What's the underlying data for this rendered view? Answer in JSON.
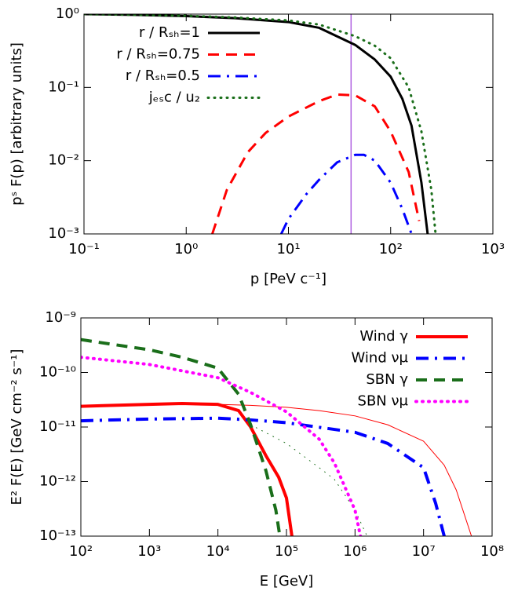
{
  "chart_data": [
    {
      "type": "line",
      "xlabel": "p [PeV c⁻¹]",
      "ylabel": "pˢ F(p) [arbitrary units]",
      "log_x": true,
      "log_y": true,
      "xlim": [
        0.1,
        1000
      ],
      "ylim": [
        0.001,
        1
      ],
      "legend": "upper left",
      "xticks": [
        {
          "value": 0.1,
          "label": "10⁻¹"
        },
        {
          "value": 1,
          "label": "10⁰"
        },
        {
          "value": 10,
          "label": "10¹"
        },
        {
          "value": 100,
          "label": "10²"
        },
        {
          "value": 1000,
          "label": "10³"
        }
      ],
      "yticks": [
        {
          "value": 0.001,
          "label": "10⁻³"
        },
        {
          "value": 0.01,
          "label": "10⁻²"
        },
        {
          "value": 0.1,
          "label": "10⁻¹"
        },
        {
          "value": 1,
          "label": "10⁰"
        }
      ],
      "vline": {
        "x": 41,
        "color": "#b060e0"
      },
      "series": [
        {
          "name": "r / Rₛₕ=1",
          "color": "#000000",
          "dash": "solid",
          "linewidth": 3,
          "x": [
            0.1,
            0.3,
            1,
            3,
            10,
            20,
            45,
            70,
            100,
            130,
            160,
            200,
            230
          ],
          "values": [
            1.0,
            0.98,
            0.94,
            0.88,
            0.78,
            0.65,
            0.38,
            0.24,
            0.14,
            0.07,
            0.03,
            0.005,
            0.001
          ]
        },
        {
          "name": "r / Rₛₕ=0.75",
          "color": "#ff0000",
          "dash": "dashed",
          "linewidth": 3,
          "x": [
            1.8,
            2.5,
            4,
            6,
            10,
            20,
            30,
            45,
            70,
            100,
            150,
            190
          ],
          "values": [
            0.001,
            0.004,
            0.013,
            0.024,
            0.04,
            0.065,
            0.08,
            0.078,
            0.055,
            0.025,
            0.007,
            0.0015
          ]
        },
        {
          "name": "r / Rₛₕ=0.5",
          "color": "#0000ff",
          "dash": "dashdot",
          "linewidth": 3,
          "x": [
            8.5,
            10,
            15,
            20,
            30,
            45,
            55,
            70,
            100,
            130,
            160
          ],
          "values": [
            0.001,
            0.0016,
            0.0035,
            0.0055,
            0.0095,
            0.012,
            0.012,
            0.01,
            0.005,
            0.0022,
            0.001
          ]
        },
        {
          "name": "jₑₛc / u₂",
          "color": "#1a6e1a",
          "dash": "dotted",
          "linewidth": 3,
          "x": [
            0.1,
            0.3,
            1,
            3,
            10,
            20,
            45,
            70,
            100,
            150,
            200,
            250,
            275
          ],
          "values": [
            1.0,
            0.98,
            0.95,
            0.9,
            0.82,
            0.72,
            0.5,
            0.37,
            0.25,
            0.1,
            0.025,
            0.004,
            0.001
          ]
        }
      ]
    },
    {
      "type": "line",
      "xlabel": "E [GeV]",
      "ylabel": "E² F(E) [GeV cm⁻² s⁻¹]",
      "log_x": true,
      "log_y": true,
      "xlim": [
        100,
        100000000
      ],
      "ylim": [
        1e-13,
        1e-09
      ],
      "legend": "upper right",
      "xticks": [
        {
          "value": 100,
          "label": "10²"
        },
        {
          "value": 1000,
          "label": "10³"
        },
        {
          "value": 10000,
          "label": "10⁴"
        },
        {
          "value": 100000,
          "label": "10⁵"
        },
        {
          "value": 1000000,
          "label": "10⁶"
        },
        {
          "value": 10000000,
          "label": "10⁷"
        },
        {
          "value": 100000000,
          "label": "10⁸"
        }
      ],
      "yticks": [
        {
          "value": 1e-13,
          "label": "10⁻¹³"
        },
        {
          "value": 1e-12,
          "label": "10⁻¹²"
        },
        {
          "value": 1e-11,
          "label": "10⁻¹¹"
        },
        {
          "value": 1e-10,
          "label": "10⁻¹⁰"
        },
        {
          "value": 1e-09,
          "label": "10⁻⁹"
        }
      ],
      "series": [
        {
          "color": "#ff0000",
          "dash": "solid",
          "linewidth": 1,
          "x": [
            10000,
            30000,
            100000,
            300000,
            1000000,
            3000000,
            10000000,
            20000000,
            30000000,
            50000000
          ],
          "values": [
            2.6e-11,
            2.5e-11,
            2.3e-11,
            2e-11,
            1.6e-11,
            1.1e-11,
            5.5e-12,
            2e-12,
            7e-13,
            1e-13
          ]
        },
        {
          "color": "#1a6e1a",
          "dash": "dotted",
          "linewidth": 1,
          "x": [
            30000,
            100000,
            300000,
            500000,
            1000000,
            1500000
          ],
          "values": [
            1.1e-11,
            5e-12,
            1.8e-12,
            1.1e-12,
            3e-13,
            1e-13
          ]
        },
        {
          "name": "Wind γ",
          "color": "#ff0000",
          "dash": "solid",
          "linewidth": 4,
          "x": [
            100,
            1000,
            3000,
            10000,
            20000,
            30000,
            50000,
            77000,
            100000,
            120000
          ],
          "values": [
            2.4e-11,
            2.6e-11,
            2.7e-11,
            2.6e-11,
            2e-11,
            1e-11,
            3e-12,
            1.2e-12,
            5e-13,
            1e-13
          ]
        },
        {
          "name": "Wind νμ",
          "color": "#0000ff",
          "dash": "dashdot",
          "linewidth": 4,
          "x": [
            100,
            1000,
            10000,
            30000,
            100000,
            1000000,
            3000000,
            10000000,
            15000000,
            20000000
          ],
          "values": [
            1.3e-11,
            1.4e-11,
            1.45e-11,
            1.35e-11,
            1.2e-11,
            8e-12,
            5e-12,
            1.8e-12,
            4e-13,
            1e-13
          ]
        },
        {
          "name": "SBN γ",
          "color": "#1a6e1a",
          "dash": "dashed",
          "linewidth": 4,
          "x": [
            100,
            1000,
            3000,
            10000,
            20000,
            30000,
            50000,
            70000,
            80000
          ],
          "values": [
            4e-10,
            2.6e-10,
            1.9e-10,
            1.2e-10,
            4e-11,
            1.1e-11,
            1.6e-12,
            3e-13,
            1e-13
          ]
        },
        {
          "name": "SBN νμ",
          "color": "#ff00ff",
          "dash": "dotted",
          "linewidth": 4,
          "x": [
            100,
            1000,
            10000,
            30000,
            100000,
            300000,
            500000,
            1000000,
            1200000
          ],
          "values": [
            1.9e-10,
            1.4e-10,
            8e-11,
            4.3e-11,
            1.9e-11,
            6e-12,
            2.2e-12,
            3e-13,
            1e-13
          ]
        }
      ]
    }
  ]
}
